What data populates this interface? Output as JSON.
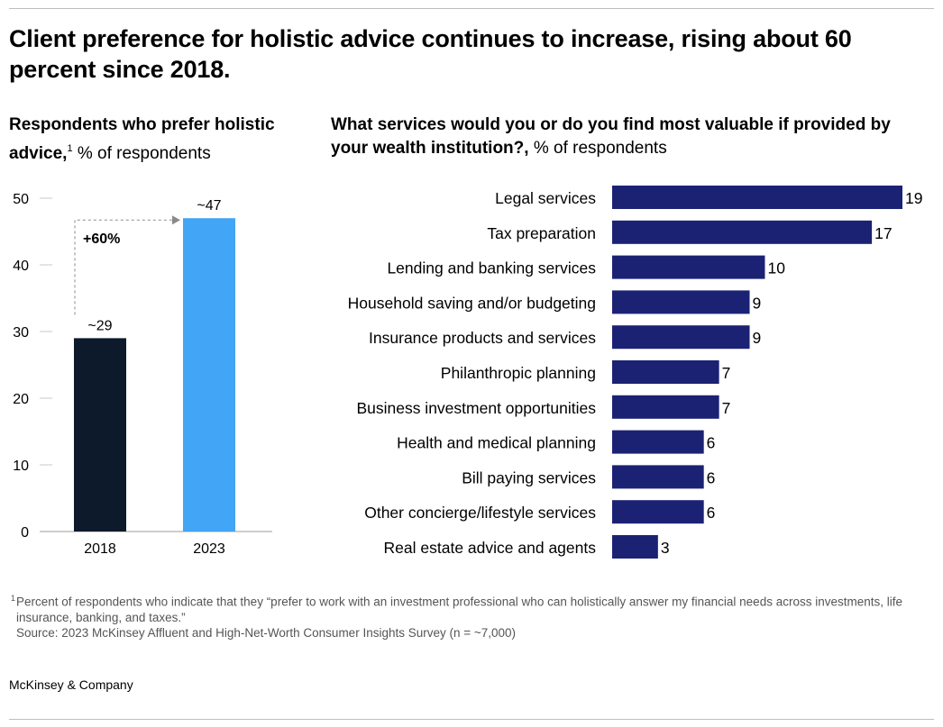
{
  "title": "Client preference for holistic advice continues to increase, rising about 60 percent since 2018.",
  "colors": {
    "bar_2018": "#0d1a2c",
    "bar_2023": "#42a5f5",
    "bar_services": "#1b2274",
    "text": "#000000",
    "muted": "#555555"
  },
  "left_panel": {
    "subtitle_bold": "Respondents who prefer holistic advice,",
    "subtitle_sup": "1",
    "subtitle_rest": "% of respondents"
  },
  "right_panel": {
    "subtitle_bold": "What services would you or do you find most valuable if provided by your wealth institution?,",
    "subtitle_rest": "% of respondents"
  },
  "chart_data": [
    {
      "type": "bar",
      "categories": [
        "2018",
        "2023"
      ],
      "values": [
        29,
        47
      ],
      "data_labels": [
        "~29",
        "~47"
      ],
      "ylim": [
        0,
        50
      ],
      "yticks": [
        "0",
        "10",
        "20",
        "30",
        "40",
        "50"
      ],
      "annotation": "+60%",
      "grid": false
    },
    {
      "type": "bar",
      "orientation": "horizontal",
      "categories": [
        "Legal services",
        "Tax preparation",
        "Lending and banking services",
        "Household saving and/or budgeting",
        "Insurance products and services",
        "Philanthropic planning",
        "Business investment opportunities",
        "Health and medical planning",
        "Bill paying services",
        "Other concierge/lifestyle services",
        "Real estate advice and agents"
      ],
      "values": [
        19,
        17,
        10,
        9,
        9,
        7,
        7,
        6,
        6,
        6,
        3
      ],
      "xlim": [
        0,
        19
      ],
      "grid": false
    }
  ],
  "footnote": {
    "sup": "1",
    "text": "Percent of respondents who indicate that they “prefer to work with an investment professional who can holistically answer my financial needs across investments, life insurance, banking, and taxes.”",
    "source": "Source: 2023 McKinsey Affluent and High-Net-Worth Consumer Insights Survey (n = ~7,000)"
  },
  "brand": "McKinsey & Company"
}
